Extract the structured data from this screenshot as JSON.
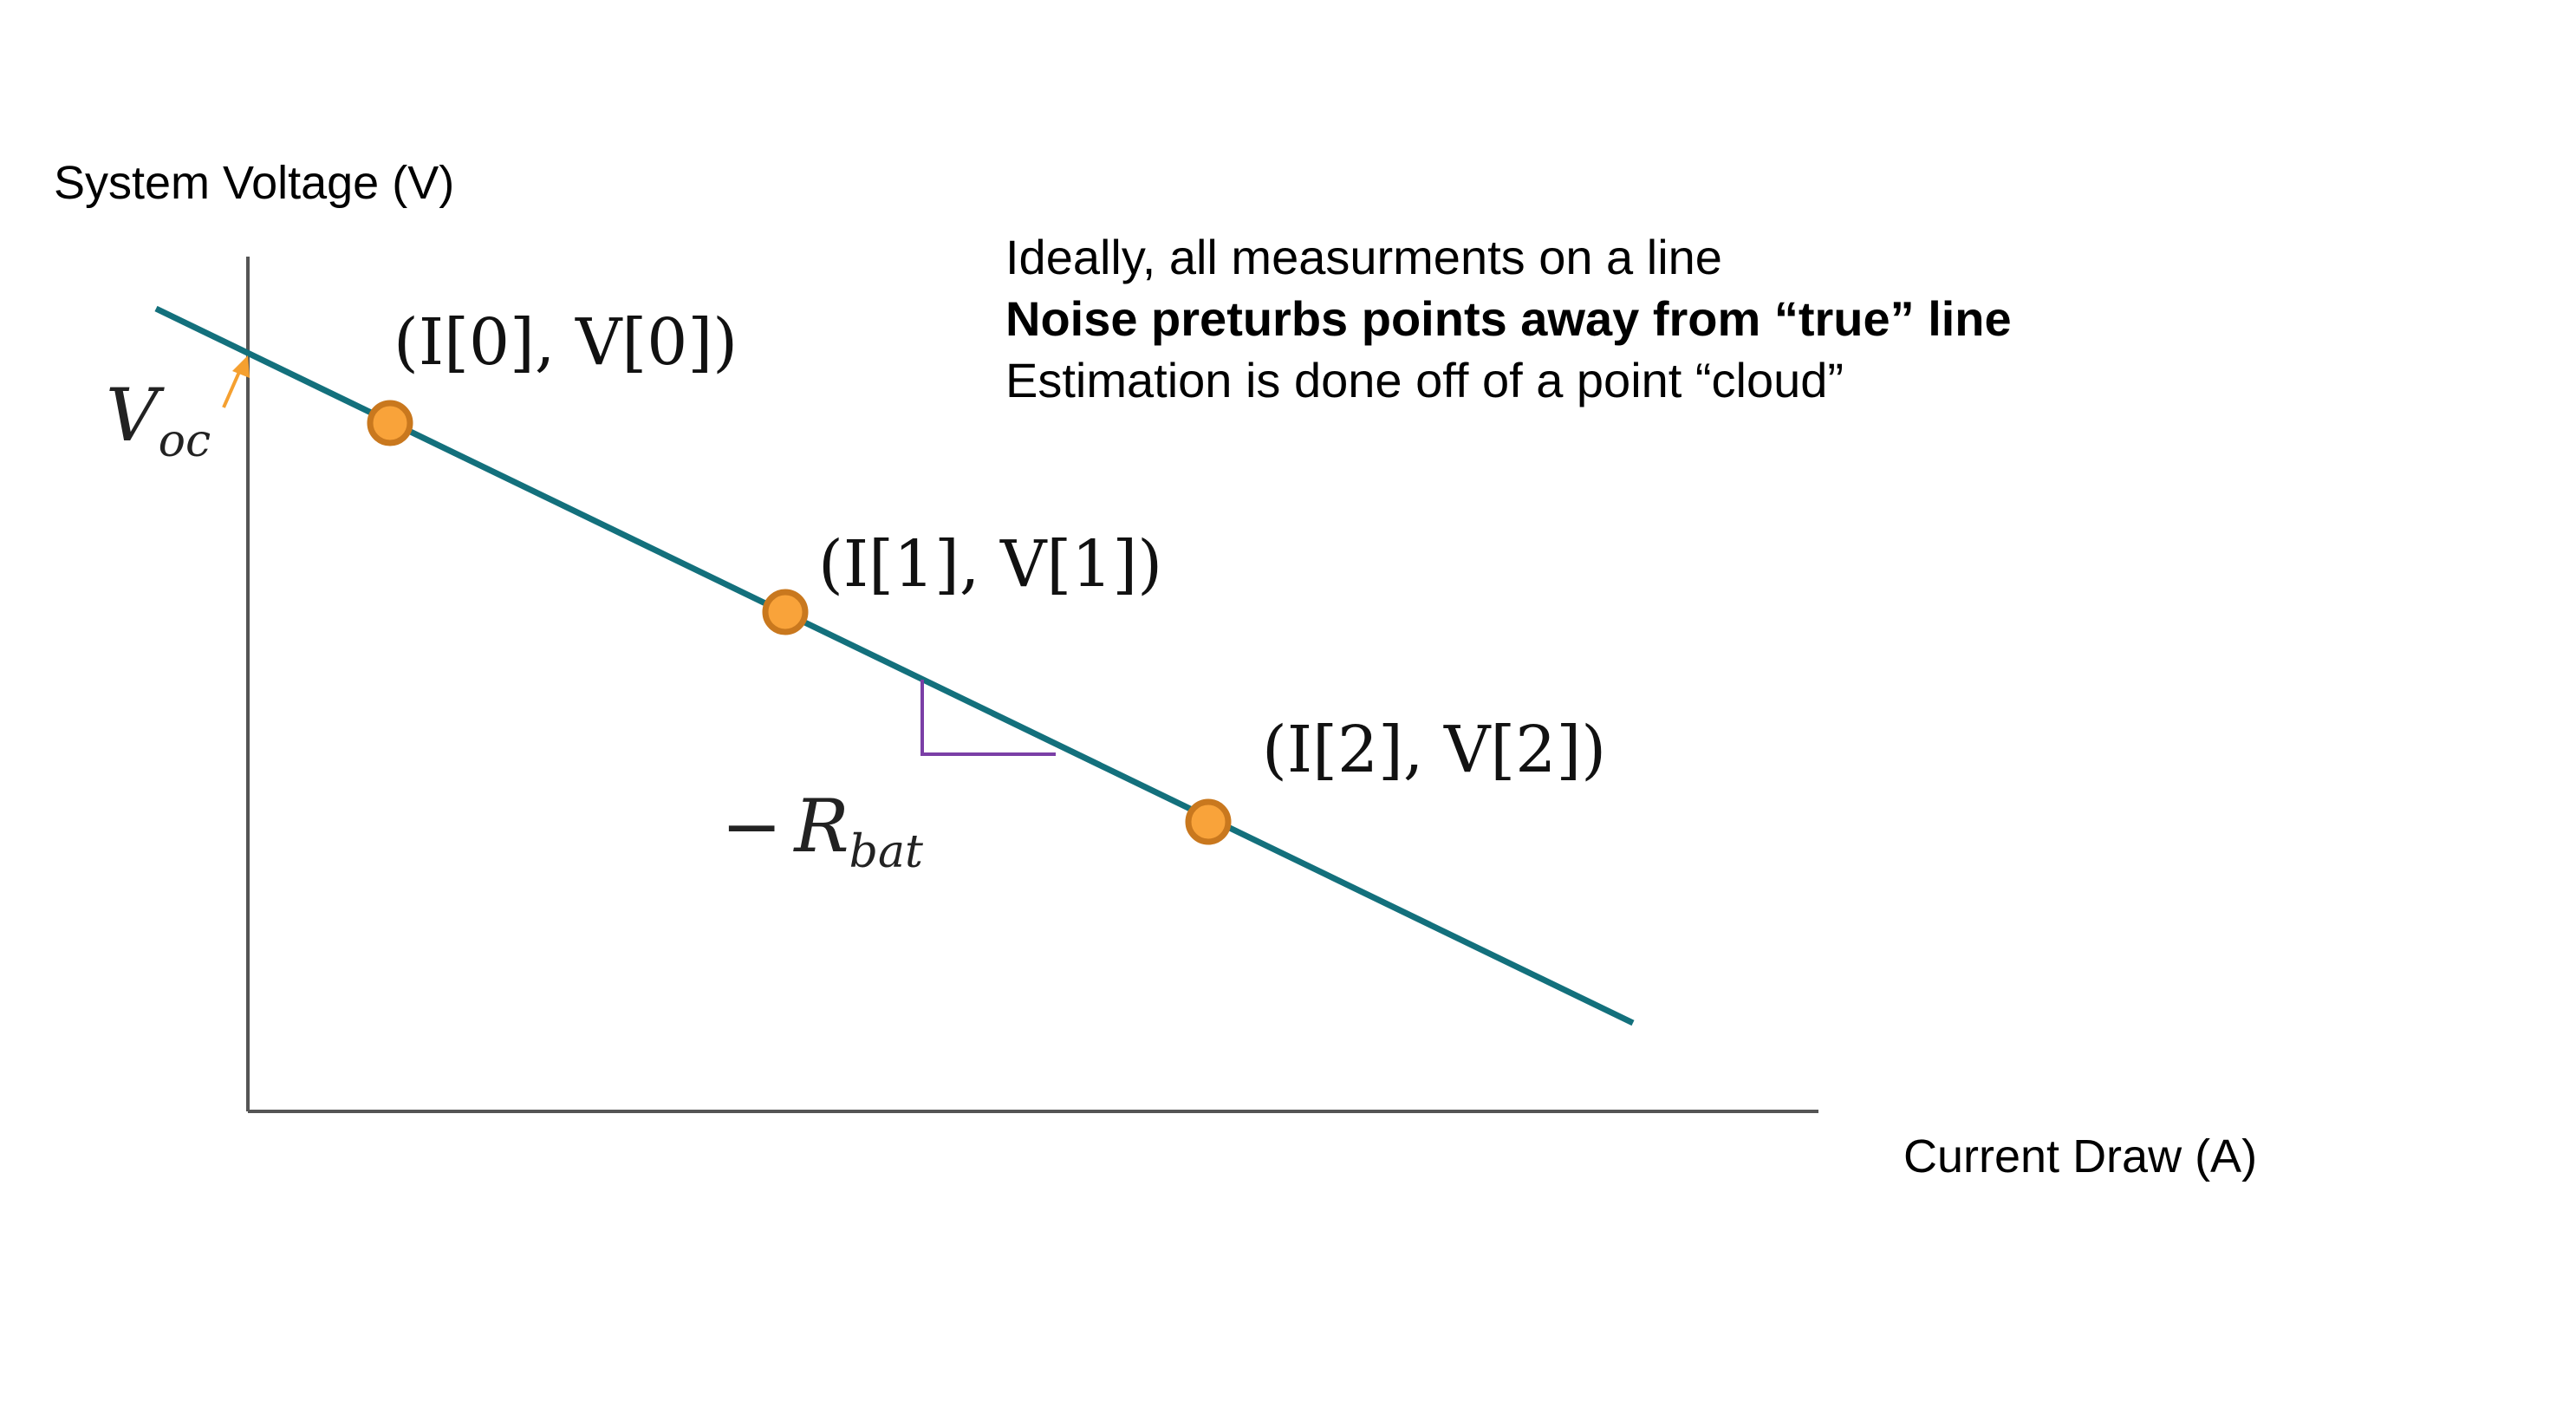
{
  "diagram": {
    "y_axis_label": "System Voltage (V)",
    "x_axis_label": "Current Draw (A)",
    "notes": [
      "Ideally, all measurments on a line",
      "Noise preturbs points away from “true” line",
      "Estimation is done off of a point “cloud”"
    ],
    "points": [
      {
        "label": "(I[0], V[0])"
      },
      {
        "label": "(I[1], V[1])"
      },
      {
        "label": "(I[2], V[2])"
      }
    ],
    "intercept_label": {
      "main": "V",
      "sub": "oc"
    },
    "slope_label": {
      "sign": "−",
      "main": "R",
      "sub": "bat"
    },
    "colors": {
      "line": "#13707c",
      "axis": "#555555",
      "point_fill": "#f9a33a",
      "point_stroke": "#c9781e",
      "slope_marker": "#7b3fa6",
      "intercept_arrow": "#f5a030"
    }
  }
}
